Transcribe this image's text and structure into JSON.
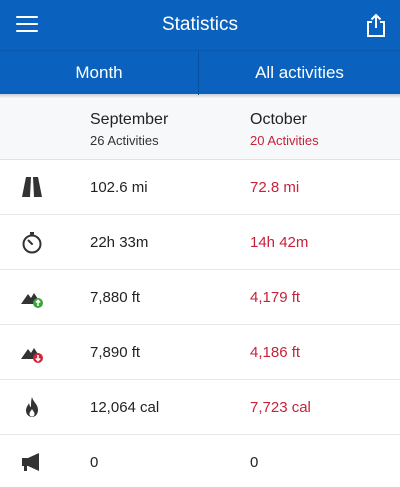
{
  "header": {
    "title": "Statistics",
    "menu_icon": "hamburger-menu-icon",
    "share_icon": "share-icon"
  },
  "tabs": [
    {
      "label": "Month"
    },
    {
      "label": "All activities"
    }
  ],
  "columns": [
    {
      "month": "September",
      "activities": "26 Activities"
    },
    {
      "month": "October",
      "activities": "20 Activities"
    }
  ],
  "rows": [
    {
      "icon": "road-distance-icon",
      "september": "102.6 mi",
      "october": "72.8 mi"
    },
    {
      "icon": "stopwatch-icon",
      "september": "22h 33m",
      "october": "14h 42m"
    },
    {
      "icon": "elevation-gain-icon",
      "september": "7,880 ft",
      "october": "4,179 ft"
    },
    {
      "icon": "elevation-loss-icon",
      "september": "7,890 ft",
      "october": "4,186 ft"
    },
    {
      "icon": "flame-calories-icon",
      "september": "12,064 cal",
      "october": "7,723 cal"
    },
    {
      "icon": "megaphone-icon",
      "september": "0",
      "october": "0"
    }
  ],
  "colors": {
    "brand_blue": "#0a62be",
    "highlight_red": "#c8213a",
    "gain_green": "#3aa339",
    "loss_red": "#d0243c"
  }
}
